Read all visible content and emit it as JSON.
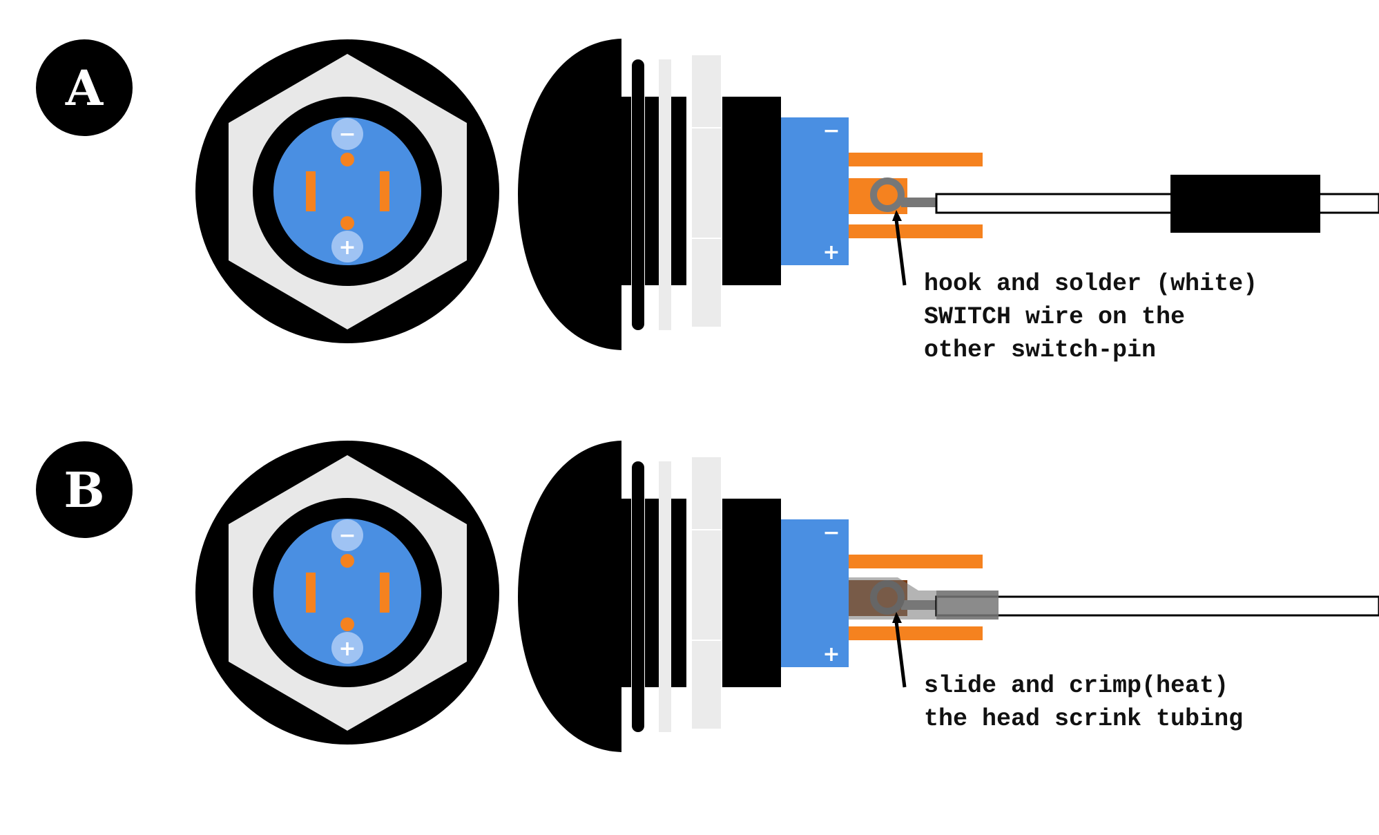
{
  "colors": {
    "black": "#000000",
    "led_blue": "#4a8fe2",
    "light_blue": "#9fc3f3",
    "orange": "#f5821f",
    "dark_orange": "#7a3a10",
    "nut_grey": "#e8e8e8",
    "washer_grey": "#ebebeb",
    "wire_grey": "#777777",
    "white": "#ffffff"
  },
  "panels": [
    {
      "badge": "A",
      "minus_label": "−",
      "plus_label": "+",
      "note_lines": [
        "hook and solder (white)",
        "SWITCH wire on the",
        "other switch-pin"
      ],
      "step": "hook-and-solder"
    },
    {
      "badge": "B",
      "minus_label": "−",
      "plus_label": "+",
      "note_lines": [
        "slide and crimp(heat)",
        "the head scrink tubing"
      ],
      "step": "heat-shrink"
    }
  ],
  "icons": {
    "front_view": "switch-front-view-icon",
    "side_view": "switch-side-view-icon"
  }
}
